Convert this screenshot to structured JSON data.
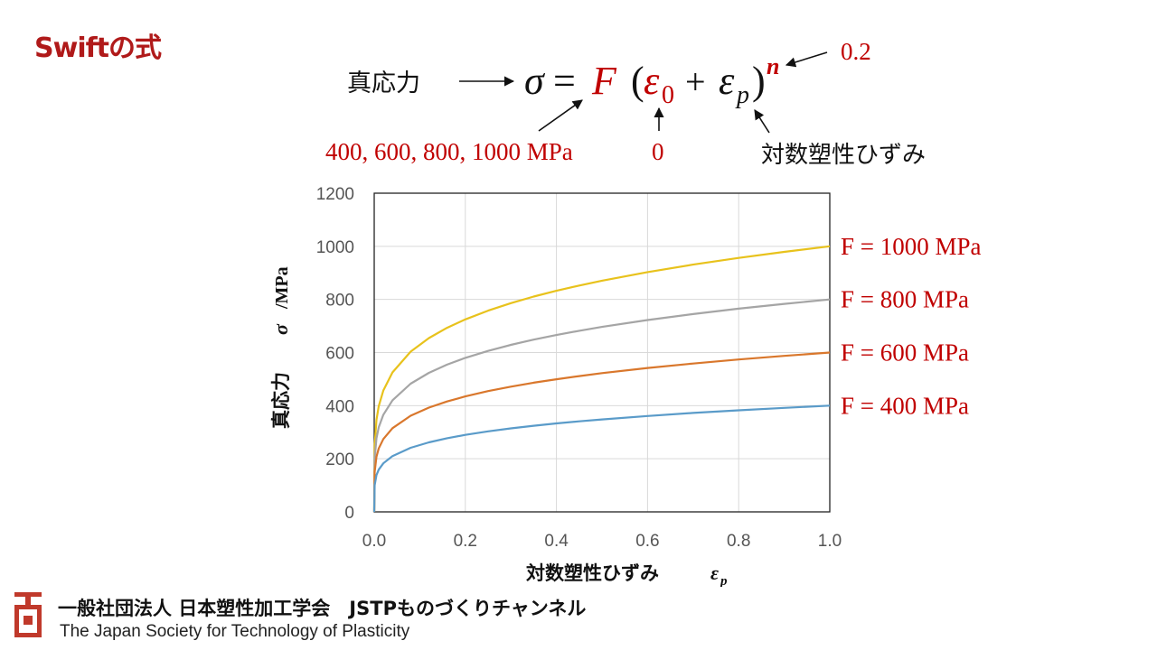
{
  "slide": {
    "title": "Swiftの式"
  },
  "formula": {
    "lhs_label": "真応力",
    "sigma": "σ",
    "equals": "=",
    "F": "F",
    "open_paren": "(",
    "eps": "ε",
    "sub_zero": "0",
    "plus": "+",
    "sub_p": "p",
    "close_paren": ")",
    "exp_n": "n",
    "n_value": "0.2",
    "F_values": "400, 600, 800, 1000 MPa",
    "eps0_value": "0",
    "eps_p_label": "対数塑性ひずみ"
  },
  "chart_data": {
    "type": "line",
    "equation": "σ = F (ε0 + εp)^n",
    "n": 0.2,
    "eps0": 0,
    "x": [
      0,
      0.001,
      0.005,
      0.01,
      0.02,
      0.04,
      0.08,
      0.12,
      0.16,
      0.2,
      0.25,
      0.3,
      0.35,
      0.4,
      0.45,
      0.5,
      0.6,
      0.7,
      0.8,
      0.9,
      1.0
    ],
    "series": [
      {
        "name": "F = 1000 MPa",
        "F": 1000,
        "color": "#e8c21c"
      },
      {
        "name": "F = 800 MPa",
        "F": 800,
        "color": "#a5a5a5"
      },
      {
        "name": "F = 600 MPa",
        "F": 600,
        "color": "#d9772c"
      },
      {
        "name": "F = 400 MPa",
        "F": 400,
        "color": "#5a9bc9"
      }
    ],
    "xlabel": "対数塑性ひずみ",
    "xlabel_symbol": "ε",
    "xlabel_sub": "p",
    "ylabel": "真応力",
    "ylabel_symbol": "σ",
    "ylabel_unit": "/MPa",
    "xlim": [
      0,
      1.0
    ],
    "ylim": [
      0,
      1200
    ],
    "xticks": [
      "0.0",
      "0.2",
      "0.4",
      "0.6",
      "0.8",
      "1.0"
    ],
    "yticks": [
      "0",
      "200",
      "400",
      "600",
      "800",
      "1000",
      "1200"
    ],
    "grid": true,
    "legend": "right"
  },
  "footer": {
    "org_name": "一般社団法人 日本塑性加工学会　JSTPものづくりチャンネル",
    "org_name_en": "The Japan Society for Technology of Plasticity"
  }
}
